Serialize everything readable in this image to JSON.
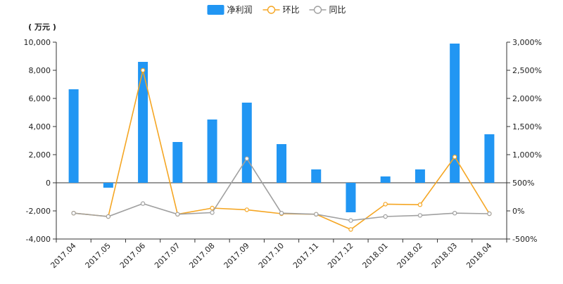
{
  "chart_data": {
    "type": "bar+line",
    "categories": [
      "2017.04",
      "2017.05",
      "2017.06",
      "2017.07",
      "2017.08",
      "2017.09",
      "2017.10",
      "2017.11",
      "2017.12",
      "2018.01",
      "2018.02",
      "2018.03",
      "2018.04"
    ],
    "left_unit": "( 万元 )",
    "left_axis": {
      "min": -4000,
      "max": 10000,
      "step": 2000,
      "tick_labels": [
        "-4,000",
        "-2,000",
        "0",
        "2,000",
        "4,000",
        "6,000",
        "8,000",
        "10,000"
      ]
    },
    "right_axis": {
      "min": -500,
      "max": 3000,
      "step": 500,
      "tick_labels": [
        "-500%",
        "0%",
        "500%",
        "1,000%",
        "1,500%",
        "2,000%",
        "2,500%",
        "3,000%"
      ]
    },
    "legend": {
      "position": "top-center"
    },
    "series": [
      {
        "name": "净利润",
        "kind": "bar",
        "axis": "left",
        "color": "#2196F3",
        "values": [
          6650,
          -350,
          8600,
          2900,
          4500,
          5700,
          2750,
          950,
          -2100,
          450,
          950,
          9900,
          3450
        ]
      },
      {
        "name": "环比",
        "kind": "line",
        "axis": "right",
        "color": "#F5A623",
        "values": [
          -40,
          -100,
          2500,
          -60,
          50,
          20,
          -50,
          -60,
          -330,
          120,
          110,
          960,
          -50
        ]
      },
      {
        "name": "同比",
        "kind": "line",
        "axis": "right",
        "color": "#A0A0A0",
        "values": [
          -40,
          -100,
          130,
          -60,
          -30,
          930,
          -40,
          -60,
          -170,
          -100,
          -80,
          -40,
          -50
        ]
      }
    ]
  }
}
